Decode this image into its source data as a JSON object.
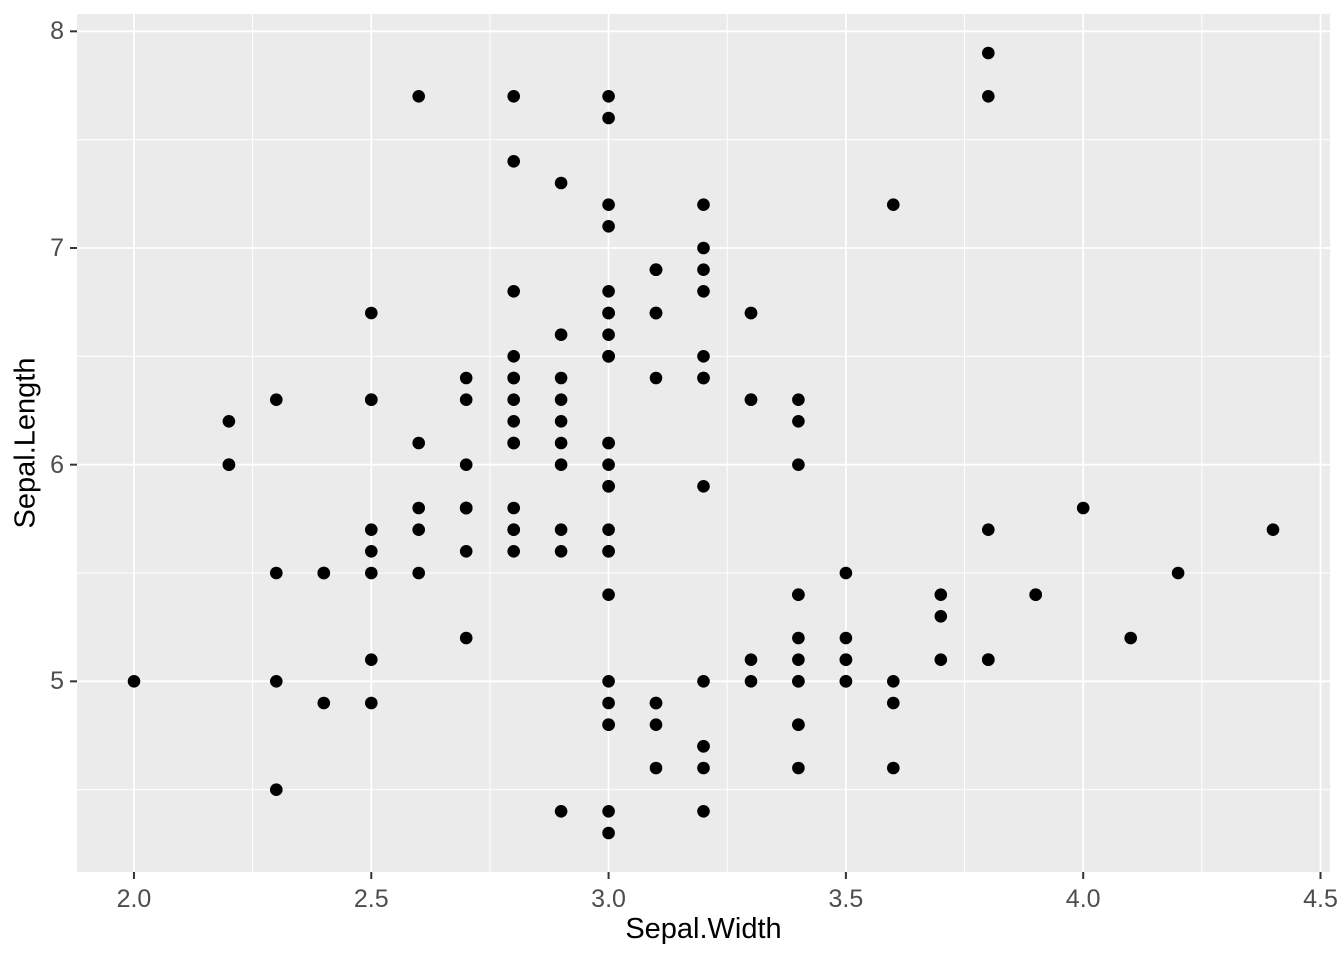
{
  "chart_data": {
    "type": "scatter",
    "title": "",
    "xlabel": "Sepal.Width",
    "ylabel": "Sepal.Length",
    "xlim": [
      1.88,
      4.52
    ],
    "ylim": [
      4.12,
      8.08
    ],
    "x_tick_values": [
      2.0,
      2.5,
      3.0,
      3.5,
      4.0,
      4.5
    ],
    "x_tick_labels": [
      "2.0",
      "2.5",
      "3.0",
      "3.5",
      "4.0",
      "4.5"
    ],
    "y_tick_values": [
      5,
      6,
      7,
      8
    ],
    "y_tick_labels": [
      "5",
      "6",
      "7",
      "8"
    ],
    "x_minor_gridlines": [
      2.25,
      2.75,
      3.25,
      3.75,
      4.25
    ],
    "y_minor_gridlines": [
      4.5,
      5.5,
      6.5,
      7.5
    ],
    "grid": "on",
    "legend_position": "none",
    "colors": {
      "panel_background": "#EBEBEB",
      "gridline": "#FFFFFF",
      "point": "#000000",
      "axis_text": "#4D4D4D",
      "axis_title": "#000000",
      "tick_mark": "#333333",
      "figure_background": "#FFFFFF"
    },
    "point_radius_px": 6.3,
    "points_xy": [
      [
        3.5,
        5.1
      ],
      [
        3.0,
        4.9
      ],
      [
        3.2,
        4.7
      ],
      [
        3.1,
        4.6
      ],
      [
        3.6,
        5.0
      ],
      [
        3.9,
        5.4
      ],
      [
        3.4,
        4.6
      ],
      [
        3.4,
        5.0
      ],
      [
        2.9,
        4.4
      ],
      [
        3.1,
        4.9
      ],
      [
        3.7,
        5.4
      ],
      [
        3.4,
        4.8
      ],
      [
        3.0,
        4.8
      ],
      [
        3.0,
        4.3
      ],
      [
        4.0,
        5.8
      ],
      [
        4.4,
        5.7
      ],
      [
        3.9,
        5.4
      ],
      [
        3.5,
        5.1
      ],
      [
        3.8,
        5.7
      ],
      [
        3.8,
        5.1
      ],
      [
        3.4,
        5.4
      ],
      [
        3.7,
        5.1
      ],
      [
        3.6,
        4.6
      ],
      [
        3.3,
        5.1
      ],
      [
        3.4,
        4.8
      ],
      [
        3.0,
        5.0
      ],
      [
        3.4,
        5.0
      ],
      [
        3.5,
        5.2
      ],
      [
        3.4,
        5.2
      ],
      [
        3.2,
        4.7
      ],
      [
        3.1,
        4.8
      ],
      [
        3.4,
        5.4
      ],
      [
        4.1,
        5.2
      ],
      [
        4.2,
        5.5
      ],
      [
        3.1,
        4.9
      ],
      [
        3.2,
        5.0
      ],
      [
        3.5,
        5.5
      ],
      [
        3.6,
        4.9
      ],
      [
        3.0,
        4.4
      ],
      [
        3.4,
        5.1
      ],
      [
        3.5,
        5.0
      ],
      [
        2.3,
        4.5
      ],
      [
        3.2,
        4.4
      ],
      [
        3.5,
        5.0
      ],
      [
        3.8,
        5.1
      ],
      [
        3.0,
        4.8
      ],
      [
        3.8,
        5.1
      ],
      [
        3.2,
        4.6
      ],
      [
        3.7,
        5.3
      ],
      [
        3.3,
        5.0
      ],
      [
        3.2,
        7.0
      ],
      [
        3.2,
        6.4
      ],
      [
        3.1,
        6.9
      ],
      [
        2.3,
        5.5
      ],
      [
        2.8,
        6.5
      ],
      [
        2.8,
        5.7
      ],
      [
        3.3,
        6.3
      ],
      [
        2.4,
        4.9
      ],
      [
        2.9,
        6.6
      ],
      [
        2.7,
        5.2
      ],
      [
        2.0,
        5.0
      ],
      [
        3.0,
        5.9
      ],
      [
        2.2,
        6.0
      ],
      [
        2.9,
        6.1
      ],
      [
        2.9,
        5.6
      ],
      [
        3.1,
        6.7
      ],
      [
        3.0,
        5.6
      ],
      [
        2.7,
        5.8
      ],
      [
        2.2,
        6.2
      ],
      [
        2.5,
        5.6
      ],
      [
        3.2,
        5.9
      ],
      [
        2.8,
        6.1
      ],
      [
        2.5,
        6.3
      ],
      [
        2.8,
        6.1
      ],
      [
        2.9,
        6.4
      ],
      [
        3.0,
        6.6
      ],
      [
        2.8,
        6.8
      ],
      [
        3.0,
        6.7
      ],
      [
        2.9,
        6.0
      ],
      [
        2.6,
        5.7
      ],
      [
        2.4,
        5.5
      ],
      [
        2.4,
        5.5
      ],
      [
        2.7,
        5.8
      ],
      [
        2.7,
        6.0
      ],
      [
        3.0,
        5.4
      ],
      [
        3.4,
        6.0
      ],
      [
        3.1,
        6.7
      ],
      [
        2.3,
        6.3
      ],
      [
        3.0,
        5.6
      ],
      [
        2.5,
        5.5
      ],
      [
        2.6,
        5.5
      ],
      [
        3.0,
        6.1
      ],
      [
        2.6,
        5.8
      ],
      [
        2.3,
        5.0
      ],
      [
        2.7,
        5.6
      ],
      [
        3.0,
        5.7
      ],
      [
        2.9,
        5.7
      ],
      [
        2.9,
        6.2
      ],
      [
        2.5,
        5.1
      ],
      [
        2.8,
        5.7
      ],
      [
        3.3,
        6.3
      ],
      [
        2.7,
        5.8
      ],
      [
        3.0,
        7.1
      ],
      [
        2.9,
        6.3
      ],
      [
        3.0,
        6.5
      ],
      [
        3.0,
        7.6
      ],
      [
        2.5,
        4.9
      ],
      [
        2.9,
        7.3
      ],
      [
        2.5,
        6.7
      ],
      [
        3.6,
        7.2
      ],
      [
        3.2,
        6.5
      ],
      [
        2.7,
        6.4
      ],
      [
        3.0,
        6.8
      ],
      [
        2.5,
        5.7
      ],
      [
        2.8,
        5.8
      ],
      [
        3.2,
        6.4
      ],
      [
        3.0,
        6.5
      ],
      [
        3.8,
        7.7
      ],
      [
        2.6,
        7.7
      ],
      [
        2.2,
        6.0
      ],
      [
        3.2,
        6.9
      ],
      [
        2.8,
        5.6
      ],
      [
        2.8,
        7.7
      ],
      [
        2.7,
        6.3
      ],
      [
        3.3,
        6.7
      ],
      [
        3.2,
        7.2
      ],
      [
        2.8,
        6.2
      ],
      [
        3.0,
        6.1
      ],
      [
        2.8,
        6.4
      ],
      [
        3.0,
        7.2
      ],
      [
        2.8,
        7.4
      ],
      [
        3.8,
        7.9
      ],
      [
        2.8,
        6.4
      ],
      [
        2.8,
        6.3
      ],
      [
        2.6,
        6.1
      ],
      [
        3.0,
        7.7
      ],
      [
        3.4,
        6.3
      ],
      [
        3.1,
        6.4
      ],
      [
        3.0,
        6.0
      ],
      [
        3.1,
        6.9
      ],
      [
        3.1,
        6.7
      ],
      [
        3.1,
        6.9
      ],
      [
        2.7,
        5.8
      ],
      [
        3.2,
        6.8
      ],
      [
        3.3,
        6.7
      ],
      [
        3.0,
        6.7
      ],
      [
        2.5,
        6.3
      ],
      [
        3.0,
        6.5
      ],
      [
        3.4,
        6.2
      ],
      [
        3.0,
        5.9
      ]
    ]
  }
}
